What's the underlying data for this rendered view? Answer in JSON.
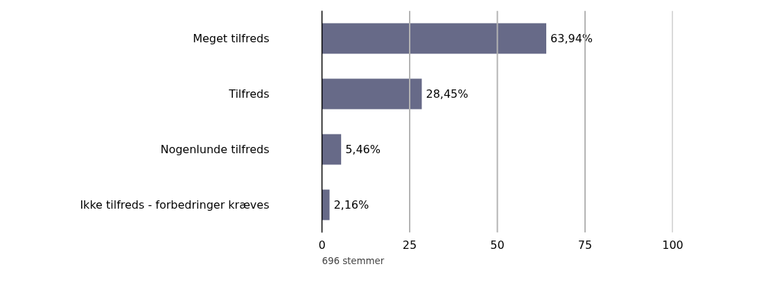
{
  "chart_data": {
    "type": "bar",
    "orientation": "horizontal",
    "categories": [
      "Meget tilfreds",
      "Tilfreds",
      "Nogenlunde tilfreds",
      "Ikke tilfreds - forbedringer kræves"
    ],
    "values": [
      63.94,
      28.45,
      5.46,
      2.16
    ],
    "value_labels": [
      "63,94%",
      "28,45%",
      "5,46%",
      "2,16%"
    ],
    "color": "#676a88",
    "xlim": [
      0,
      100
    ],
    "xticks": [
      0,
      25,
      50,
      75,
      100
    ],
    "grid": "x",
    "annotations": [
      "696 stemmer"
    ]
  }
}
